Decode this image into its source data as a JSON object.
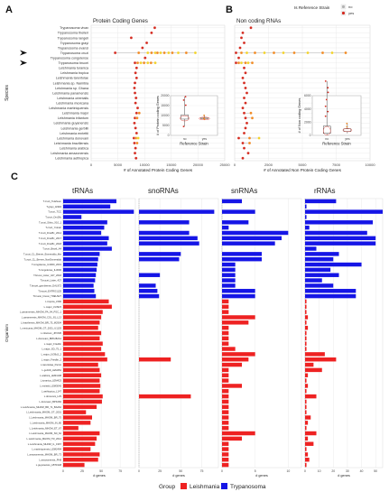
{
  "colors": {
    "leishmania": "#ee2222",
    "trypanosoma": "#1515e6",
    "dot_orange": "#f08a24",
    "dot_red": "#d42a1f",
    "dot_yellow": "#f2d22a",
    "dot_grey": "#b3b3b3",
    "grid": "#e6e6e6",
    "arrow": "#111111"
  },
  "panels": {
    "a": {
      "letter": "A",
      "title": "Protein Coding Genes"
    },
    "b": {
      "letter": "B",
      "title": "Non coding RNAs"
    },
    "c": {
      "letter": "C"
    }
  },
  "legend_top": {
    "title": "Is Reference Strain",
    "items": [
      "no",
      "yes"
    ]
  },
  "legend_bottom": {
    "title": "Group",
    "items": [
      "Leishmania",
      "Trypanosoma"
    ]
  },
  "chart_data": [
    {
      "id": "A",
      "type": "scatter",
      "title": "Protein Coding Genes",
      "xlabel": "# of Annotated Protein Coding Genes",
      "ylabel": "Species",
      "xlim": [
        0,
        25000
      ],
      "xticks": [
        "0",
        "5000",
        "10000",
        "15000",
        "20000",
        "25000"
      ],
      "arrowed_species": [
        "Trypanosoma cruzi",
        "Trypanosoma brucei"
      ],
      "species": [
        {
          "name": "Trypanosoma vivax",
          "x": [
            11900
          ]
        },
        {
          "name": "Trypanosoma theileri",
          "x": [
            11300
          ]
        },
        {
          "name": "Trypanosoma rangeli",
          "x": [
            7500
          ]
        },
        {
          "name": "Trypanosoma grayi",
          "x": [
            10400
          ]
        },
        {
          "name": "Trypanosoma evansi",
          "x": [
            9600
          ]
        },
        {
          "name": "Trypanosoma cruzi",
          "x": [
            4500,
            8900,
            10600,
            11300,
            12000,
            12400,
            13000,
            13700,
            14500,
            15200,
            16300,
            17800,
            19500
          ]
        },
        {
          "name": "Trypanosoma congolense",
          "x": [
            10100
          ]
        },
        {
          "name": "Trypanosoma brucei",
          "x": [
            8200,
            8700,
            9300,
            9900,
            10600,
            11200,
            12000
          ]
        },
        {
          "name": "Leishmania turanica",
          "x": [
            8500
          ]
        },
        {
          "name": "Leishmania tropica",
          "x": [
            8300
          ]
        },
        {
          "name": "Leishmania tarentolae",
          "x": [
            8500
          ]
        },
        {
          "name": "Leishmania sp. Namibia",
          "x": [
            8200
          ]
        },
        {
          "name": "Leishmania sp. Ghana",
          "x": [
            8100
          ]
        },
        {
          "name": "Leishmania panamensis",
          "x": [
            8200
          ]
        },
        {
          "name": "Leishmania orientalis",
          "x": [
            8400
          ]
        },
        {
          "name": "Leishmania mexicana",
          "x": [
            8300
          ]
        },
        {
          "name": "Leishmania martiniquensis",
          "x": [
            8700
          ]
        },
        {
          "name": "Leishmania major",
          "x": [
            8500,
            9000
          ]
        },
        {
          "name": "Leishmania infantum",
          "x": [
            8200,
            8600
          ]
        },
        {
          "name": "Leishmania guyanensis",
          "x": [
            8100
          ]
        },
        {
          "name": "Leishmania gerbilli",
          "x": [
            8300
          ]
        },
        {
          "name": "Leishmania enriettii",
          "x": [
            8500
          ]
        },
        {
          "name": "Leishmania donovani",
          "x": [
            8000,
            8400,
            8800
          ]
        },
        {
          "name": "Leishmania braziliensis",
          "x": [
            8100,
            8600
          ]
        },
        {
          "name": "Leishmania arabica",
          "x": [
            8300
          ]
        },
        {
          "name": "Leishmania amazonensis",
          "x": [
            8200
          ]
        },
        {
          "name": "Leishmania aethiopica",
          "x": [
            8400
          ]
        }
      ],
      "inset": {
        "type": "box",
        "ylabel": "# of Protein coding Genes",
        "xlabel": "Reference Strain",
        "categories": [
          "no",
          "yes"
        ],
        "ylim": [
          0,
          20000
        ],
        "yticks": [
          "0",
          "5000",
          "10000",
          "15000",
          "20000"
        ]
      }
    },
    {
      "id": "B",
      "type": "scatter",
      "title": "Non coding RNAs",
      "xlabel": "# of Annotated Non Protein Coding Genes",
      "xlim": [
        0,
        10000
      ],
      "xticks": [
        "0",
        "2500",
        "5000",
        "7500",
        "10000"
      ],
      "species_x": [
        [
          1200
        ],
        [
          600
        ],
        [
          500
        ],
        [
          700
        ],
        [
          400
        ],
        [
          100,
          500,
          900,
          1500,
          2200,
          2900,
          3600,
          4400,
          5400,
          6500,
          7200,
          8200
        ],
        [
          300
        ],
        [
          100,
          300,
          500,
          800,
          1000,
          1300
        ],
        [
          700
        ],
        [
          800
        ],
        [
          600
        ],
        [
          700
        ],
        [
          800
        ],
        [
          900
        ],
        [
          700
        ],
        [
          800
        ],
        [
          600
        ],
        [
          700,
          1200
        ],
        [
          800,
          1300
        ],
        [
          900
        ],
        [
          800
        ],
        [
          700
        ],
        [
          300,
          1100,
          1800
        ],
        [
          600,
          1100
        ],
        [
          700
        ],
        [
          1000
        ],
        [
          600
        ]
      ],
      "inset": {
        "type": "box",
        "ylabel": "# of Non coding Genes",
        "xlabel": "Reference Strain",
        "categories": [
          "no",
          "yes"
        ],
        "ylim": [
          0,
          6000
        ],
        "yticks": [
          "0",
          "2000",
          "4000",
          "6000"
        ]
      }
    },
    {
      "id": "C",
      "type": "bar",
      "orientation": "horizontal",
      "ylabel": "Organism",
      "xlabel": "# genes",
      "facets": [
        "tRNAs",
        "snoRNAs",
        "snRNAs",
        "rRNAs"
      ],
      "xlims": [
        [
          0,
          95
        ],
        [
          0,
          95
        ],
        [
          0,
          12
        ],
        [
          0,
          55
        ]
      ],
      "xticks": [
        [
          "0",
          "25",
          "50",
          "75"
        ],
        [
          "0",
          "25",
          "50",
          "75"
        ],
        [
          "0",
          "5",
          "10"
        ],
        [
          "0",
          "10",
          "20",
          "30",
          "40",
          "50"
        ]
      ],
      "organisms": [
        {
          "name": "T.cruzi_Tulahuen",
          "group": "Trypanosoma",
          "values": [
            70,
            0,
            3,
            22
          ]
        },
        {
          "name": "T.grayi_ANR4",
          "group": "Trypanosoma",
          "values": [
            62,
            0,
            0,
            1
          ]
        },
        {
          "name": "T.cruzi_TCC",
          "group": "Trypanosoma",
          "values": [
            93,
            90,
            5,
            55
          ]
        },
        {
          "name": "T.cruzi_Dm28c",
          "group": "Trypanosoma",
          "values": [
            24,
            0,
            0,
            1
          ]
        },
        {
          "name": "T.cruzi_Silvio_X10_1",
          "group": "Trypanosoma",
          "values": [
            58,
            60,
            4,
            48
          ]
        },
        {
          "name": "T.cruzi_Ystrain",
          "group": "Trypanosoma",
          "values": [
            54,
            0,
            1,
            3
          ]
        },
        {
          "name": "T.cruzi_Dm28c_2014",
          "group": "Trypanosoma",
          "values": [
            50,
            60,
            10,
            44
          ]
        },
        {
          "name": "T.cruzi_Dm28c_2017",
          "group": "Trypanosoma",
          "values": [
            60,
            70,
            9,
            50
          ]
        },
        {
          "name": "T.cruzi_Dm28c_2018",
          "group": "Trypanosoma",
          "values": [
            58,
            72,
            8,
            50
          ]
        },
        {
          "name": "T.cruzi_Brazil_A4",
          "group": "Trypanosoma",
          "values": [
            64,
            0,
            0,
            8
          ]
        },
        {
          "name": "T.cruzi_CL_Brener_Esmeraldo_like",
          "group": "Trypanosoma",
          "values": [
            48,
            50,
            6,
            24
          ]
        },
        {
          "name": "T.cruzi_CL_Brener_NonEsmeraldo",
          "group": "Trypanosoma",
          "values": [
            46,
            48,
            6,
            20
          ]
        },
        {
          "name": "T.congolense_IL3000_2019",
          "group": "Trypanosoma",
          "values": [
            45,
            0,
            2,
            40
          ]
        },
        {
          "name": "T.congolense_IL3000",
          "group": "Trypanosoma",
          "values": [
            44,
            0,
            2,
            18
          ]
        },
        {
          "name": "T.brucei_Lister_427_2018",
          "group": "Trypanosoma",
          "values": [
            43,
            25,
            2,
            24
          ]
        },
        {
          "name": "T.brucei_Lister_427",
          "group": "Trypanosoma",
          "values": [
            42,
            0,
            2,
            12
          ]
        },
        {
          "name": "T.brucei_gambiense_DAL972",
          "group": "Trypanosoma",
          "values": [
            40,
            20,
            2,
            20
          ]
        },
        {
          "name": "T.brucei_EATRO1125",
          "group": "Trypanosoma",
          "values": [
            41,
            22,
            5,
            36
          ]
        },
        {
          "name": "T.brucei_brucei_TREU927",
          "group": "Trypanosoma",
          "values": [
            43,
            24,
            5,
            36
          ]
        },
        {
          "name": "L.tropica_L590",
          "group": "Leishmania",
          "values": [
            60,
            0,
            1,
            1
          ]
        },
        {
          "name": "L.major_LV39c5",
          "group": "Leishmania",
          "values": [
            64,
            0,
            1,
            1
          ]
        },
        {
          "name": "L.panamensis_MHOM_PA_94_PSC_1",
          "group": "Leishmania",
          "values": [
            52,
            0,
            1,
            1
          ]
        },
        {
          "name": "L.panamensis_MHOM_COL_81_L13",
          "group": "Leishmania",
          "values": [
            50,
            0,
            5,
            2
          ]
        },
        {
          "name": "L.braziliensis_MHOM_BR_75_M2904",
          "group": "Leishmania",
          "values": [
            48,
            0,
            4,
            1
          ]
        },
        {
          "name": "L.mexicana_MHOM_GT_2001_U1103",
          "group": "Leishmania",
          "values": [
            46,
            0,
            1,
            2
          ]
        },
        {
          "name": "L.infantum_JPCM5",
          "group": "Leishmania",
          "values": [
            50,
            0,
            1,
            1
          ]
        },
        {
          "name": "L.donovani_BPK282A1",
          "group": "Leishmania",
          "values": [
            48,
            0,
            1,
            1
          ]
        },
        {
          "name": "L.major_Friedlin",
          "group": "Leishmania",
          "values": [
            52,
            0,
            1,
            1
          ]
        },
        {
          "name": "L.major_SD_75_1",
          "group": "Leishmania",
          "values": [
            50,
            0,
            2,
            1
          ]
        },
        {
          "name": "L.major_LV39c5_2",
          "group": "Leishmania",
          "values": [
            55,
            0,
            5,
            14
          ]
        },
        {
          "name": "L.major_Friedlin_2",
          "group": "Leishmania",
          "values": [
            58,
            38,
            4,
            22
          ]
        },
        {
          "name": "L.tarentolae_Parrot",
          "group": "Leishmania",
          "values": [
            46,
            0,
            3,
            6
          ]
        },
        {
          "name": "L.gerbilli_LEM452",
          "group": "Leishmania",
          "values": [
            48,
            0,
            1,
            12
          ]
        },
        {
          "name": "L.arabica_LEM1108",
          "group": "Leishmania",
          "values": [
            50,
            0,
            1,
            2
          ]
        },
        {
          "name": "L.turanica_LEM423",
          "group": "Leishmania",
          "values": [
            48,
            0,
            1,
            1
          ]
        },
        {
          "name": "L.enriettii_LEM3045",
          "group": "Leishmania",
          "values": [
            49,
            0,
            3,
            2
          ]
        },
        {
          "name": "L.aethiopica_L147",
          "group": "Leishmania",
          "values": [
            48,
            0,
            1,
            1
          ]
        },
        {
          "name": "L.donovani_LV9",
          "group": "Leishmania",
          "values": [
            52,
            62,
            1,
            8
          ]
        },
        {
          "name": "L.donovani_BPK282",
          "group": "Leishmania",
          "values": [
            51,
            0,
            1,
            1
          ]
        },
        {
          "name": "L.Leishmania_MHOM_BR_71_BA262",
          "group": "Leishmania",
          "values": [
            44,
            0,
            1,
            1
          ]
        },
        {
          "name": "L.Leishmania_MHOM_GT_2001",
          "group": "Leishmania",
          "values": [
            30,
            0,
            1,
            1
          ]
        },
        {
          "name": "L.Leishmania_MHOM_BR_75",
          "group": "Leishmania",
          "values": [
            38,
            0,
            1,
            4
          ]
        },
        {
          "name": "L.Leishmania_MHOM_IN_80",
          "group": "Leishmania",
          "values": [
            36,
            0,
            1,
            2
          ]
        },
        {
          "name": "L.Leishmania_MHOM_ET_67",
          "group": "Leishmania",
          "values": [
            20,
            0,
            1,
            1
          ]
        },
        {
          "name": "L.Leishmania_MHOM_SD_62",
          "group": "Leishmania",
          "values": [
            48,
            0,
            5,
            8
          ]
        },
        {
          "name": "L.Leishmania_MHOM_TR_2012",
          "group": "Leishmania",
          "values": [
            44,
            0,
            3,
            2
          ]
        },
        {
          "name": "L.Leishmania_MHOM_IL_1967",
          "group": "Leishmania",
          "values": [
            42,
            0,
            1,
            6
          ]
        },
        {
          "name": "L.martiniquensis_LEM2494",
          "group": "Leishmania",
          "values": [
            36,
            0,
            1,
            1
          ]
        },
        {
          "name": "L.amazonensis_MHOM_BR_73",
          "group": "Leishmania",
          "values": [
            48,
            0,
            1,
            2
          ]
        },
        {
          "name": "L.amazonensis_PH8",
          "group": "Leishmania",
          "values": [
            46,
            0,
            1,
            3
          ]
        },
        {
          "name": "L.guyanensis_LBT1948",
          "group": "Leishmania",
          "values": [
            28,
            0,
            1,
            1
          ]
        }
      ]
    }
  ]
}
